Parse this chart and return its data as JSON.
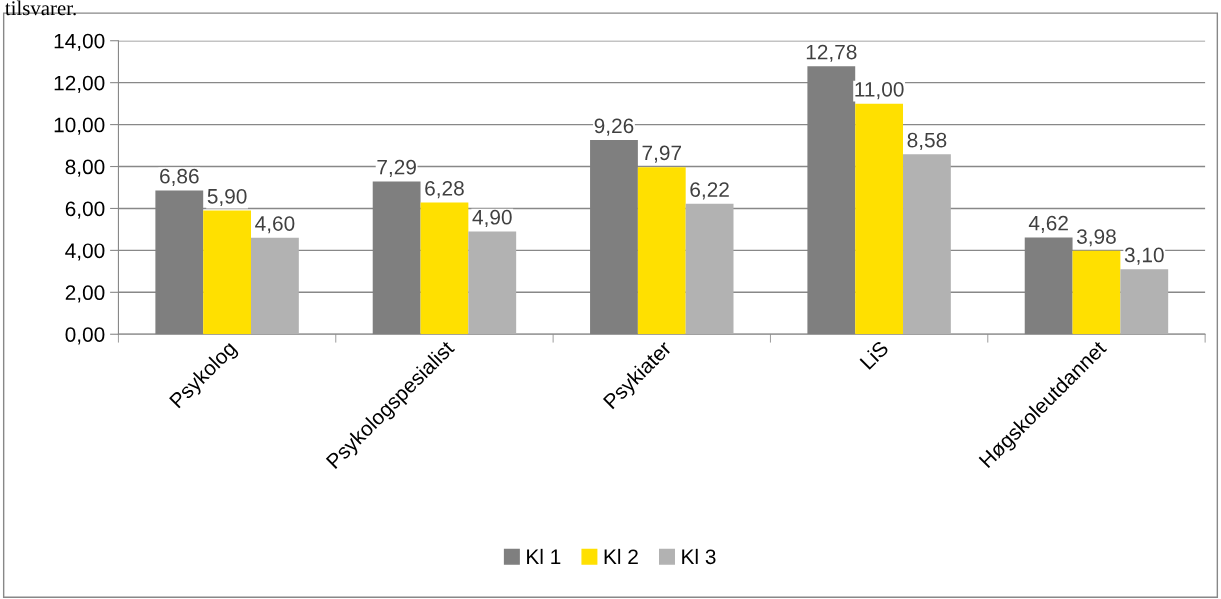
{
  "chart_data": {
    "type": "bar",
    "categories": [
      "Psykolog",
      "Psykologspesialist",
      "Psykiater",
      "LiS",
      "Høgskoleutdannet"
    ],
    "series": [
      {
        "name": "Kl 1",
        "color": "#7f7f7f",
        "values": [
          6.86,
          7.29,
          9.26,
          12.78,
          4.62
        ],
        "value_labels": [
          "6,86",
          "7,29",
          "9,26",
          "12,78",
          "4,62"
        ]
      },
      {
        "name": "Kl 2",
        "color": "#ffe000",
        "values": [
          5.9,
          6.28,
          7.97,
          11.0,
          3.98
        ],
        "value_labels": [
          "5,90",
          "6,28",
          "7,97",
          "11,00",
          "3,98"
        ]
      },
      {
        "name": "Kl 3",
        "color": "#b2b2b2",
        "values": [
          4.6,
          4.9,
          6.22,
          8.58,
          3.1
        ],
        "value_labels": [
          "4,60",
          "4,90",
          "6,22",
          "8,58",
          "3,10"
        ]
      }
    ],
    "ylim": [
      0,
      14
    ],
    "yticks": [
      {
        "value": 0,
        "label": "0,00"
      },
      {
        "value": 2,
        "label": "2,00"
      },
      {
        "value": 4,
        "label": "4,00"
      },
      {
        "value": 6,
        "label": "6,00"
      },
      {
        "value": 8,
        "label": "8,00"
      },
      {
        "value": 10,
        "label": "10,00"
      },
      {
        "value": 12,
        "label": "12,00"
      },
      {
        "value": 14,
        "label": "14,00"
      }
    ],
    "grid": "y",
    "legend": "bottom",
    "annotations": [
      "tilsvarer."
    ]
  }
}
